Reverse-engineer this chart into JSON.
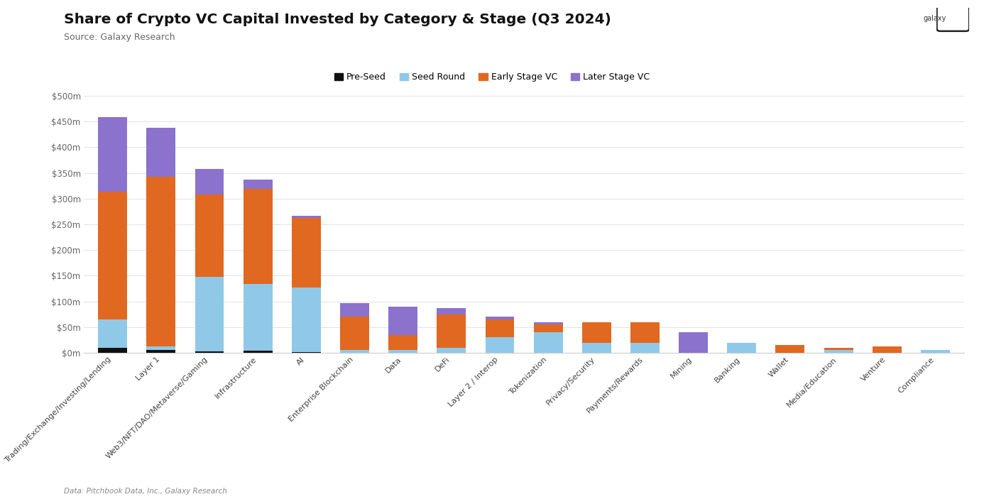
{
  "title": "Share of Crypto VC Capital Invested by Category & Stage (Q3 2024)",
  "subtitle": "Source: Galaxy Research",
  "footer": "Data: Pitchbook Data, Inc., Galaxy Research",
  "categories": [
    "Trading/Exchange/Investing/Lending",
    "Layer 1",
    "Web3/NFT/DAO/Metaverse/Gaming",
    "Infrastructure",
    "AI",
    "Enterprise Blockchain",
    "Data",
    "DeFi",
    "Layer 2 / Interop",
    "Tokenization",
    "Privacy/Security",
    "Payments/Rewards",
    "Mining",
    "Banking",
    "Wallet",
    "Media/Education",
    "Venture",
    "Compliance"
  ],
  "pre_seed": [
    10,
    5,
    3,
    4,
    2,
    0,
    0,
    0,
    0,
    0,
    0,
    0,
    0,
    0,
    0,
    0,
    0,
    0
  ],
  "seed_round": [
    55,
    8,
    145,
    130,
    125,
    5,
    5,
    10,
    30,
    40,
    20,
    20,
    0,
    20,
    0,
    5,
    0,
    5
  ],
  "early_stage": [
    248,
    330,
    160,
    185,
    135,
    65,
    30,
    65,
    35,
    15,
    40,
    40,
    0,
    0,
    15,
    5,
    12,
    0
  ],
  "later_stage": [
    145,
    95,
    50,
    18,
    5,
    27,
    55,
    12,
    5,
    5,
    0,
    0,
    40,
    0,
    0,
    0,
    0,
    0
  ],
  "colors": {
    "pre_seed": "#111111",
    "seed_round": "#90c8e8",
    "early_stage": "#e06820",
    "later_stage": "#8b72cc"
  },
  "ylim": [
    0,
    510
  ],
  "yticks": [
    0,
    50,
    100,
    150,
    200,
    250,
    300,
    350,
    400,
    450,
    500
  ],
  "ytick_labels": [
    "$0m",
    "$50m",
    "$100m",
    "$150m",
    "$200m",
    "$250m",
    "$300m",
    "$350m",
    "$400m",
    "$450m",
    "$500m"
  ],
  "background_color": "#ffffff",
  "bar_width": 0.6
}
